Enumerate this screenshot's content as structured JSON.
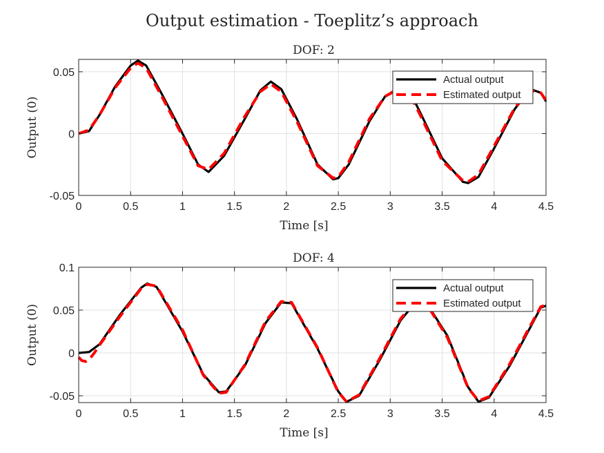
{
  "figure": {
    "title": "Output estimation - Toeplitz’s approach"
  },
  "colors": {
    "actual": "#000000",
    "estimated": "#ff0000",
    "grid": "#e1e1e1",
    "axis": "#262626"
  },
  "chart_data": [
    {
      "type": "line",
      "title": "DOF: 2",
      "xlabel": "Time [s]",
      "ylabel": "Output (0)",
      "xlim": [
        0,
        4.5
      ],
      "ylim": [
        -0.05,
        0.06
      ],
      "xticks": [
        0,
        0.5,
        1,
        1.5,
        2,
        2.5,
        3,
        3.5,
        4,
        4.5
      ],
      "xtick_labels": [
        "0",
        "0.5",
        "1",
        "1.5",
        "2",
        "2.5",
        "3",
        "3.5",
        "4",
        "4.5"
      ],
      "yticks": [
        -0.05,
        0,
        0.05
      ],
      "ytick_labels": [
        "-0.05",
        "0",
        "0.05"
      ],
      "grid": true,
      "legend_position": "top-right",
      "series": [
        {
          "name": "Actual output",
          "style": "solid",
          "x": [
            0,
            0.1,
            0.2,
            0.35,
            0.5,
            0.57,
            0.65,
            0.8,
            1.0,
            1.15,
            1.25,
            1.4,
            1.6,
            1.75,
            1.85,
            1.95,
            2.1,
            2.3,
            2.45,
            2.5,
            2.6,
            2.8,
            2.95,
            3.1,
            3.2,
            3.3,
            3.5,
            3.7,
            3.75,
            3.85,
            4.0,
            4.2,
            4.35,
            4.45,
            4.5
          ],
          "y": [
            0,
            0.002,
            0.015,
            0.038,
            0.055,
            0.059,
            0.055,
            0.032,
            0.0,
            -0.025,
            -0.031,
            -0.018,
            0.012,
            0.035,
            0.042,
            0.036,
            0.012,
            -0.025,
            -0.037,
            -0.036,
            -0.025,
            0.01,
            0.03,
            0.038,
            0.032,
            0.015,
            -0.02,
            -0.039,
            -0.04,
            -0.035,
            -0.012,
            0.02,
            0.036,
            0.033,
            0.026
          ]
        },
        {
          "name": "Estimated output",
          "style": "dashed",
          "x": [
            0,
            0.1,
            0.2,
            0.35,
            0.5,
            0.57,
            0.65,
            0.8,
            1.0,
            1.15,
            1.25,
            1.4,
            1.6,
            1.75,
            1.85,
            1.95,
            2.1,
            2.3,
            2.45,
            2.5,
            2.6,
            2.8,
            2.95,
            3.1,
            3.2,
            3.3,
            3.5,
            3.7,
            3.75,
            3.85,
            4.0,
            4.2,
            4.35,
            4.45,
            4.5
          ],
          "y": [
            0,
            0.003,
            0.015,
            0.037,
            0.053,
            0.057,
            0.053,
            0.03,
            -0.002,
            -0.026,
            -0.029,
            -0.016,
            0.014,
            0.034,
            0.04,
            0.034,
            0.01,
            -0.026,
            -0.036,
            -0.035,
            -0.023,
            0.012,
            0.03,
            0.037,
            0.03,
            0.013,
            -0.022,
            -0.038,
            -0.039,
            -0.033,
            -0.01,
            0.021,
            0.035,
            0.033,
            0.027
          ]
        }
      ]
    },
    {
      "type": "line",
      "title": "DOF: 4",
      "xlabel": "Time [s]",
      "ylabel": "Output (0)",
      "xlim": [
        0,
        4.5
      ],
      "ylim": [
        -0.058,
        0.1
      ],
      "xticks": [
        0,
        0.5,
        1,
        1.5,
        2,
        2.5,
        3,
        3.5,
        4,
        4.5
      ],
      "xtick_labels": [
        "0",
        "0.5",
        "1",
        "1.5",
        "2",
        "2.5",
        "3",
        "3.5",
        "4",
        "4.5"
      ],
      "yticks": [
        -0.05,
        0,
        0.05,
        0.1
      ],
      "ytick_labels": [
        "-0.05",
        "0",
        "0.05",
        "0.1"
      ],
      "grid": true,
      "legend_position": "top-right",
      "series": [
        {
          "name": "Actual output",
          "style": "solid",
          "x": [
            0,
            0.1,
            0.2,
            0.4,
            0.6,
            0.66,
            0.75,
            1.0,
            1.2,
            1.35,
            1.42,
            1.6,
            1.8,
            1.95,
            2.05,
            2.3,
            2.5,
            2.58,
            2.7,
            2.9,
            3.1,
            3.25,
            3.35,
            3.55,
            3.75,
            3.85,
            3.95,
            4.15,
            4.35,
            4.45,
            4.5
          ],
          "y": [
            0,
            0.001,
            0.01,
            0.045,
            0.076,
            0.081,
            0.077,
            0.025,
            -0.025,
            -0.046,
            -0.045,
            -0.015,
            0.035,
            0.059,
            0.058,
            0.005,
            -0.045,
            -0.057,
            -0.05,
            -0.008,
            0.038,
            0.06,
            0.058,
            0.02,
            -0.04,
            -0.057,
            -0.052,
            -0.015,
            0.03,
            0.053,
            0.055
          ]
        },
        {
          "name": "Estimated output",
          "style": "dashed",
          "x": [
            0,
            0.03,
            0.07,
            0.1,
            0.15,
            0.2,
            0.4,
            0.6,
            0.66,
            0.75,
            1.0,
            1.2,
            1.35,
            1.42,
            1.6,
            1.8,
            1.95,
            2.05,
            2.3,
            2.5,
            2.58,
            2.7,
            2.9,
            3.1,
            3.25,
            3.35,
            3.55,
            3.75,
            3.85,
            3.95,
            4.15,
            4.35,
            4.45,
            4.5
          ],
          "y": [
            -0.005,
            -0.009,
            -0.01,
            -0.008,
            0.0,
            0.009,
            0.043,
            0.075,
            0.08,
            0.078,
            0.027,
            -0.026,
            -0.047,
            -0.046,
            -0.014,
            0.037,
            0.06,
            0.059,
            0.006,
            -0.046,
            -0.057,
            -0.049,
            -0.006,
            0.04,
            0.061,
            0.057,
            0.018,
            -0.041,
            -0.056,
            -0.051,
            -0.013,
            0.032,
            0.054,
            0.056
          ]
        }
      ]
    }
  ]
}
